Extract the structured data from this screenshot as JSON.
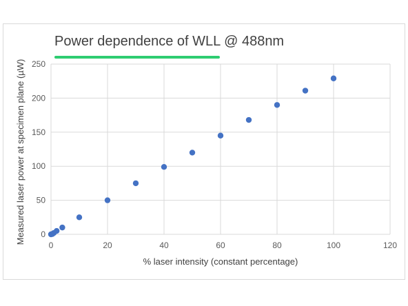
{
  "chart_data": {
    "type": "scatter",
    "title": "Power dependence of WLL @ 488nm",
    "xlabel": "% laser intensity (constant percentage)",
    "ylabel": "Measured laser power at specimen plane (µW)",
    "xlim": [
      0,
      120
    ],
    "ylim": [
      0,
      250
    ],
    "x_ticks": [
      "0",
      "20",
      "40",
      "60",
      "80",
      "100",
      "120"
    ],
    "y_ticks": [
      "0",
      "50",
      "100",
      "150",
      "200",
      "250"
    ],
    "grid": true,
    "series": [
      {
        "points": [
          [
            0,
            0
          ],
          [
            0.5,
            0.5
          ],
          [
            1,
            2
          ],
          [
            2,
            5
          ],
          [
            4,
            10
          ],
          [
            10,
            25
          ],
          [
            20,
            50
          ],
          [
            30,
            75
          ],
          [
            40,
            99
          ],
          [
            50,
            120
          ],
          [
            60,
            145
          ],
          [
            70,
            168
          ],
          [
            80,
            190
          ],
          [
            90,
            211
          ],
          [
            100,
            229
          ]
        ]
      }
    ]
  },
  "colors": {
    "marker": "#4472c4",
    "grid": "#d9d9d9",
    "title_underline": "#2ecc71"
  }
}
